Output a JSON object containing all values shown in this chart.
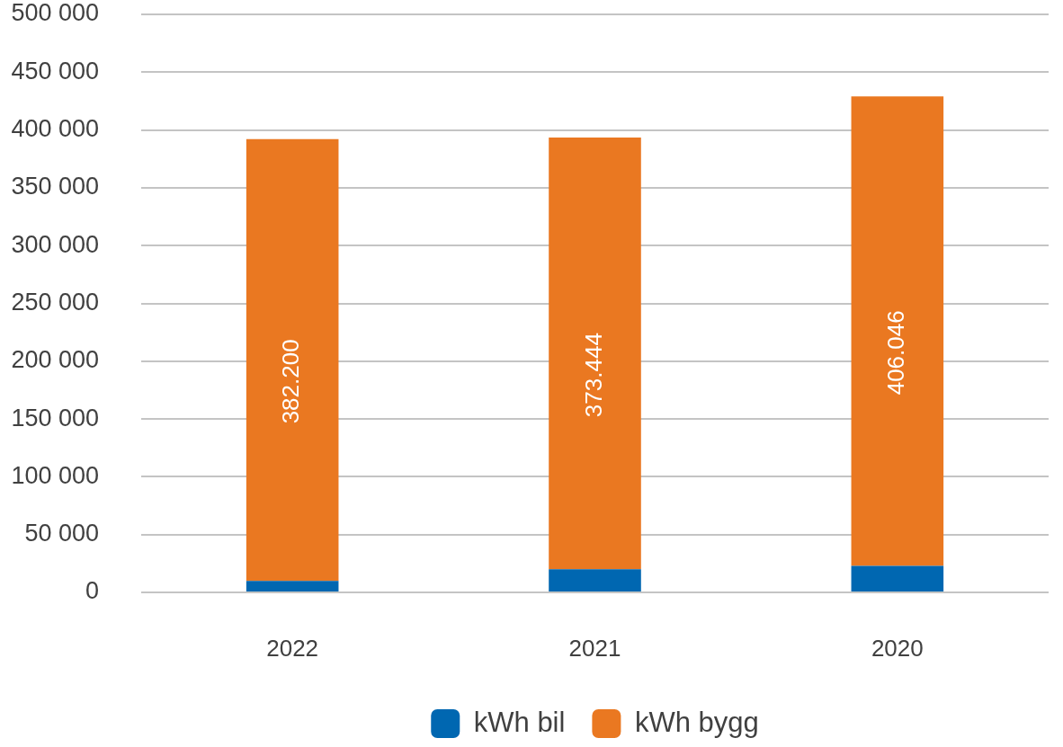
{
  "chart_data": {
    "type": "bar",
    "stacked": true,
    "categories": [
      "2022",
      "2021",
      "2020"
    ],
    "series": [
      {
        "name": "kWh bil",
        "color": "#0067b1",
        "values": [
          10000,
          20000,
          23000
        ]
      },
      {
        "name": "kWh bygg",
        "color": "#ea7821",
        "values": [
          382200,
          373444,
          406046
        ],
        "value_labels": [
          "382.200",
          "373.444",
          "406.046"
        ]
      }
    ],
    "ylim": [
      0,
      500000
    ],
    "yticks": [
      0,
      {
        "value": 50000,
        "label": "50 000"
      },
      {
        "value": 100000,
        "label": "100 000"
      },
      {
        "value": 150000,
        "label": "150 000"
      },
      {
        "value": 200000,
        "label": "200 000"
      },
      {
        "value": 250000,
        "label": "250 000"
      },
      {
        "value": 300000,
        "label": "300 000"
      },
      {
        "value": 350000,
        "label": "350 000"
      },
      {
        "value": 400000,
        "label": "400 000"
      },
      {
        "value": 450000,
        "label": "450 000"
      },
      {
        "value": 500000,
        "label": "500 000"
      }
    ],
    "grid": "y",
    "legend": "bottom"
  }
}
